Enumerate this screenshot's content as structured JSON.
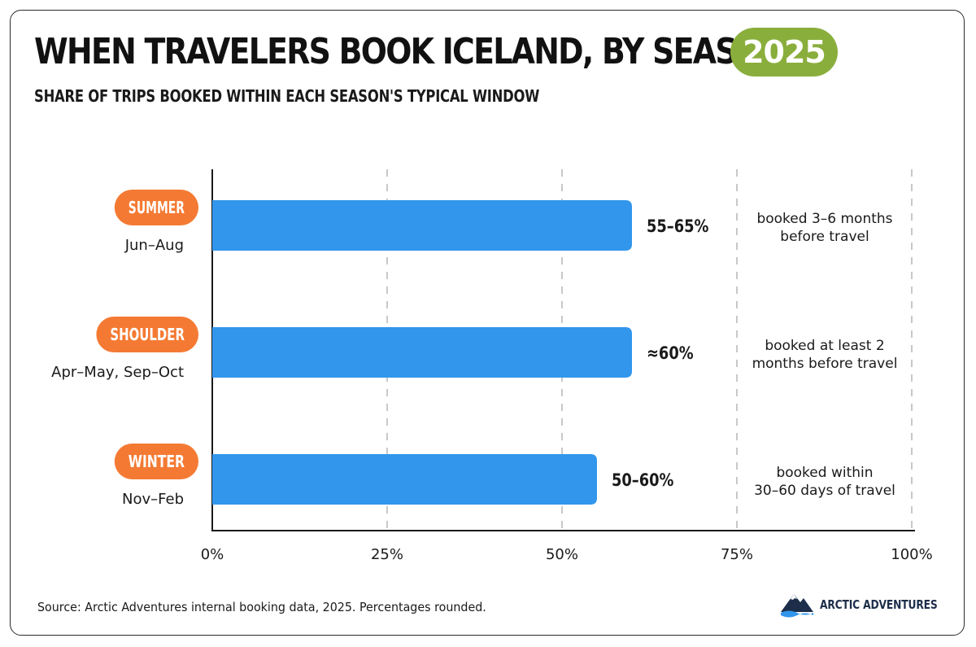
{
  "header": {
    "title": "WHEN TRAVELERS BOOK ICELAND, BY SEASON",
    "year_badge": "2025",
    "subtitle": "SHARE OF TRIPS BOOKED WITHIN EACH SEASON'S TYPICAL WINDOW"
  },
  "colors": {
    "bar": "#3196ec",
    "season_pill": "#f47a33",
    "year_badge": "#8aae3c",
    "axis": "#1a1a1a",
    "grid": "#c8c8c8"
  },
  "chart_data": {
    "type": "bar",
    "orientation": "horizontal",
    "categories": [
      "SUMMER",
      "SHOULDER",
      "WINTER"
    ],
    "category_periods": [
      "Jun–Aug",
      "Apr–May, Sep–Oct",
      "Nov–Feb"
    ],
    "values": [
      60,
      60,
      55
    ],
    "value_labels": [
      "55–65%",
      "≈60%",
      "50–60%"
    ],
    "notes": [
      [
        "booked 3–6 months",
        "before travel"
      ],
      [
        "booked at least 2",
        "months before travel"
      ],
      [
        "booked within",
        "30–60 days of travel"
      ]
    ],
    "x_ticks": [
      0,
      25,
      50,
      75,
      100
    ],
    "x_tick_labels": [
      "0%",
      "25%",
      "50%",
      "75%",
      "100%"
    ],
    "xlim": [
      0,
      100
    ],
    "grid": "vertical dashed"
  },
  "footer": {
    "source": "Source: Arctic Adventures internal booking data, 2025. Percentages rounded.",
    "brand": "ARCTIC ADVENTURES",
    "brand_icon": "mountain-logo-icon"
  }
}
